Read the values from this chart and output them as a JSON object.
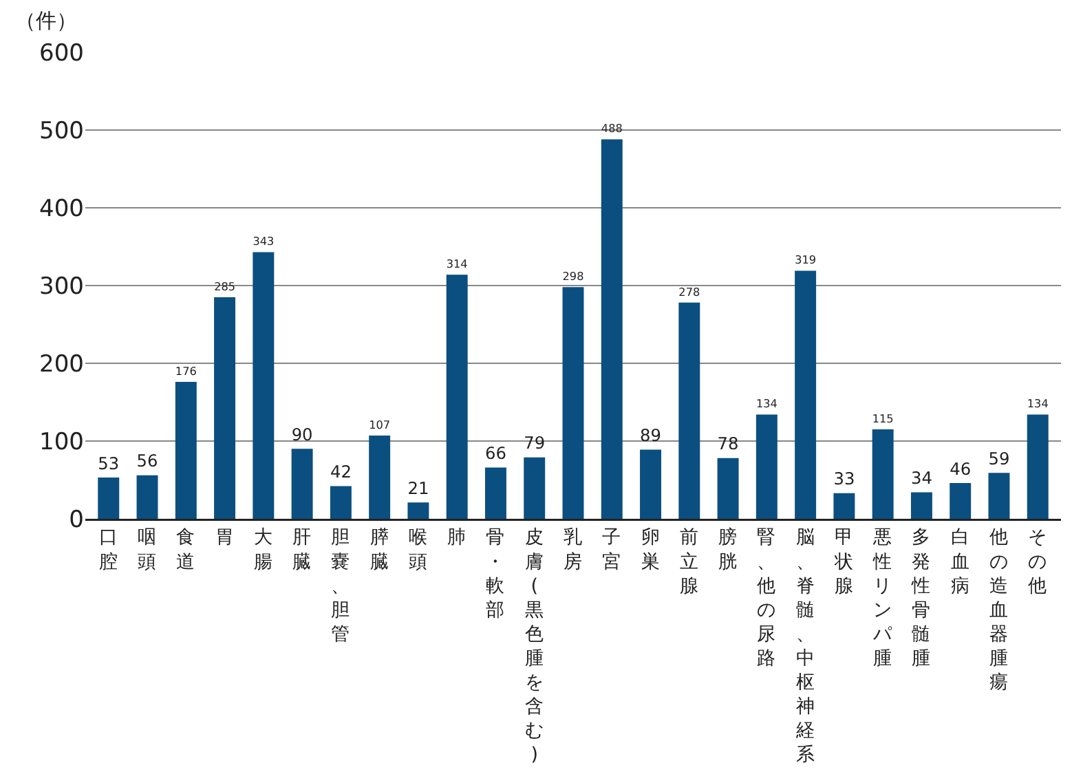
{
  "chart_data": {
    "type": "bar",
    "ylabel": "（件）",
    "categories": [
      "口腔",
      "咽頭",
      "食道",
      "胃",
      "大腸",
      "肝臓",
      "胆嚢、胆管",
      "膵臓",
      "喉頭",
      "肺",
      "骨・軟部",
      "皮膚(黒色腫を含む)",
      "乳房",
      "子宮",
      "卵巣",
      "前立腺",
      "膀胱",
      "腎、他の尿路",
      "脳、脊髄、中枢神経系",
      "甲状腺",
      "悪性リンパ腫",
      "多発性骨髄腫",
      "白血病",
      "他の造血器腫瘍",
      "その他"
    ],
    "values": [
      53,
      56,
      176,
      285,
      343,
      90,
      42,
      107,
      21,
      314,
      66,
      79,
      298,
      488,
      89,
      278,
      78,
      134,
      319,
      33,
      115,
      34,
      46,
      59,
      134
    ],
    "color": "#0b4f80",
    "ylim": [
      0,
      600
    ],
    "yticks": [
      0,
      100,
      200,
      300,
      400,
      500,
      600
    ],
    "grid": "y",
    "data_labels": true,
    "legend": false
  }
}
